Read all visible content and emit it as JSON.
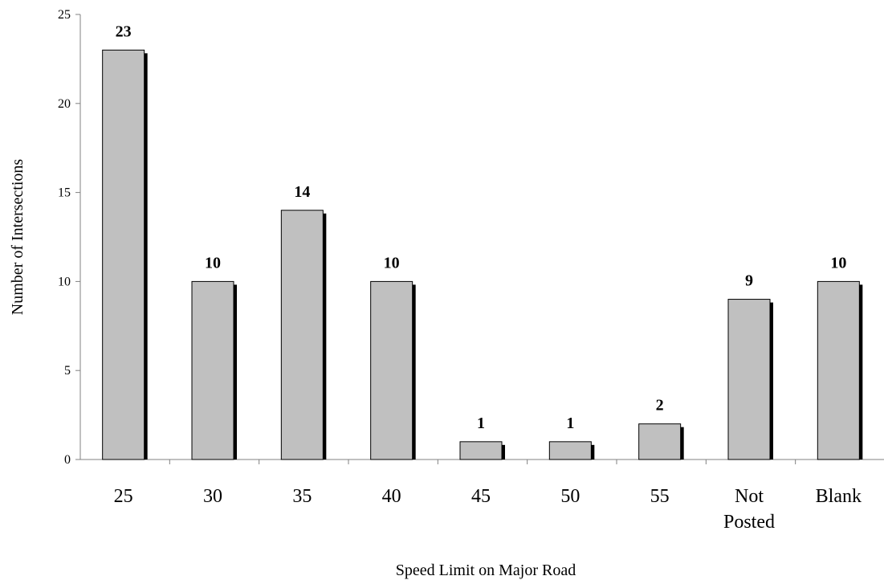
{
  "chart_data": {
    "type": "bar",
    "categories": [
      "25",
      "30",
      "35",
      "40",
      "45",
      "50",
      "55",
      "Not Posted",
      "Blank"
    ],
    "category_lines": [
      [
        "25"
      ],
      [
        "30"
      ],
      [
        "35"
      ],
      [
        "40"
      ],
      [
        "45"
      ],
      [
        "50"
      ],
      [
        "55"
      ],
      [
        "Not",
        "Posted"
      ],
      [
        "Blank"
      ]
    ],
    "values": [
      23,
      10,
      14,
      10,
      1,
      1,
      2,
      9,
      10
    ],
    "data_labels": [
      "23",
      "10",
      "14",
      "10",
      "1",
      "1",
      "2",
      "9",
      "10"
    ],
    "xlabel": "Speed Limit on Major Road",
    "ylabel": "Number of Intersections",
    "ylim": [
      0,
      25
    ],
    "yticks": [
      0,
      5,
      10,
      15,
      20,
      25
    ],
    "grid": false,
    "legend": "none",
    "colors": {
      "bar_fill": "#c0c0c0",
      "bar_stroke": "#000000",
      "bar_shadow": "#000000",
      "axis": "#808080"
    }
  }
}
